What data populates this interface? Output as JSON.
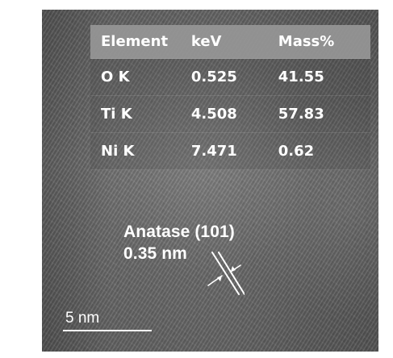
{
  "top_cropped_text": "",
  "eds_table": {
    "headers": [
      "Element",
      "keV",
      "Mass%"
    ],
    "rows": [
      [
        "O K",
        "0.525",
        "41.55"
      ],
      [
        "Ti K",
        "4.508",
        "57.83"
      ],
      [
        "Ni K",
        "7.471",
        "0.62"
      ]
    ]
  },
  "phase_annotation": {
    "name": "Anatase (101)",
    "spacing": "0.35 nm"
  },
  "scale_bar": {
    "label": "5 nm"
  },
  "colors": {
    "text": "#ffffff",
    "table_header": "#969696",
    "background": "#6b6b6b"
  },
  "icons": {
    "spacing_marker": "lattice-spacing-arrow-icon"
  }
}
